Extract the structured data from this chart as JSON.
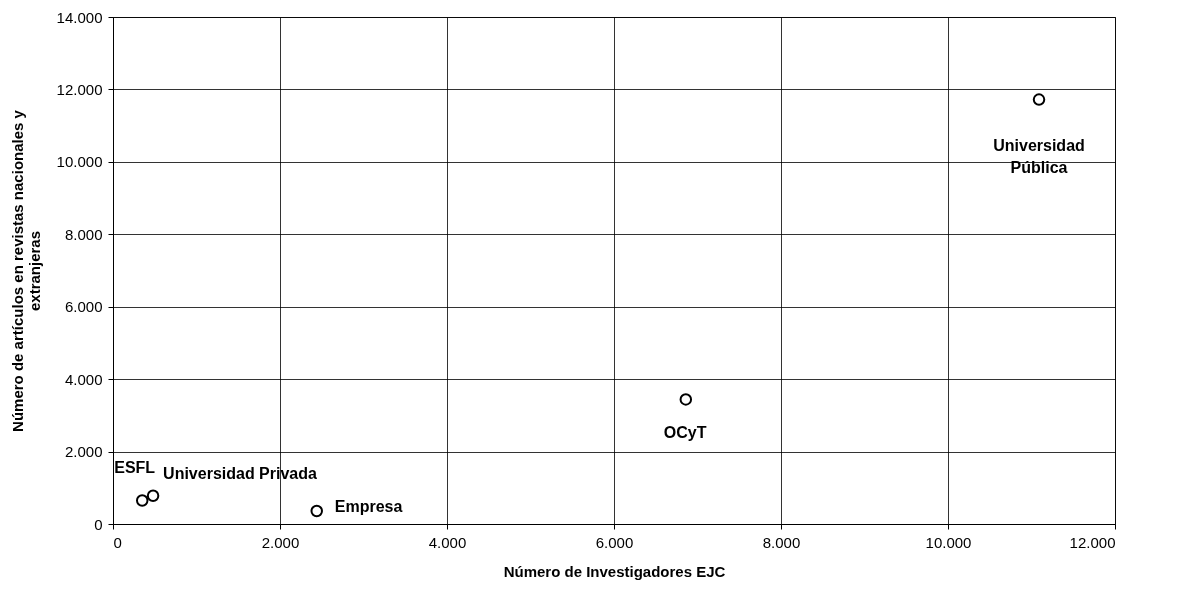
{
  "chart_data": {
    "type": "scatter",
    "xlabel": "Número de Investigadores EJC",
    "ylabel": "Número de artículos en revistas nacionales y extranjeras",
    "x": [
      350,
      480,
      2440,
      6860,
      11090
    ],
    "series": [
      {
        "color": "#000000",
        "values": [
          650,
          780,
          360,
          3440,
          11720
        ]
      }
    ],
    "marker": "circle",
    "grid": true,
    "xlim": [
      0,
      12000
    ],
    "xticks": [
      {
        "value": 0,
        "label": "0"
      },
      {
        "value": 2000,
        "label": "2.000"
      },
      {
        "value": 4000,
        "label": "4.000"
      },
      {
        "value": 6000,
        "label": "6.000"
      },
      {
        "value": 8000,
        "label": "8.000"
      },
      {
        "value": 10000,
        "label": "10.000"
      },
      {
        "value": 12000,
        "label": "12.000"
      }
    ],
    "ylim": [
      0,
      14000
    ],
    "yticks": [
      {
        "value": 0,
        "label": "0"
      },
      {
        "value": 2000,
        "label": "2.000"
      },
      {
        "value": 4000,
        "label": "4.000"
      },
      {
        "value": 6000,
        "label": "6.000"
      },
      {
        "value": 8000,
        "label": "8.000"
      },
      {
        "value": 10000,
        "label": "10.000"
      },
      {
        "value": 12000,
        "label": "12.000"
      },
      {
        "value": 14000,
        "label": "14.000"
      }
    ],
    "annotations": [
      {
        "text": "ESFL",
        "x": 350,
        "y": 650
      },
      {
        "text": "Universidad Privada",
        "x": 480,
        "y": 780
      },
      {
        "text": "Empresa",
        "x": 2440,
        "y": 360
      },
      {
        "text": "OCyT",
        "x": 6860,
        "y": 3440
      },
      {
        "text": "Universidad Pública",
        "x": 11090,
        "y": 11720
      }
    ]
  }
}
